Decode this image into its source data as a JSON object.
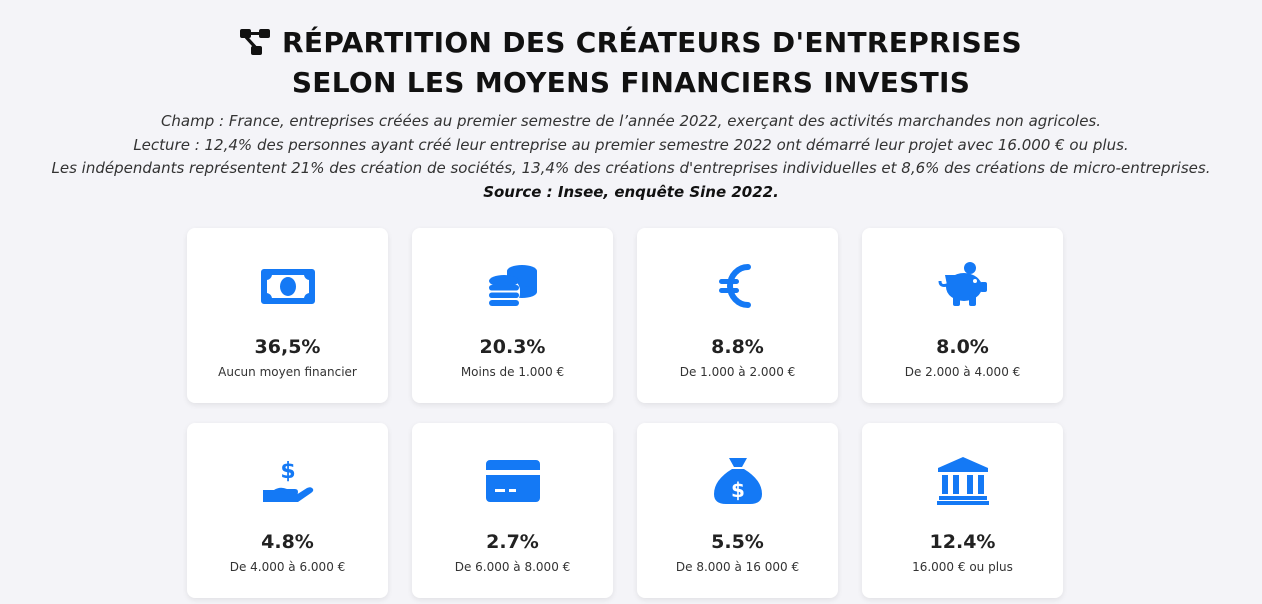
{
  "title": {
    "line1": "RÉPARTITION DES CRÉATEURS D'ENTREPRISES",
    "line2": "SELON LES MOYENS FINANCIERS INVESTIS",
    "icon": "network-icon"
  },
  "description": {
    "champ": "Champ : France, entreprises créées au premier semestre de l’année 2022, exerçant des activités marchandes non agricoles.",
    "lecture": "Lecture : 12,4% des personnes ayant créé leur entreprise au premier semestre 2022 ont démarré leur projet avec 16.000 € ou plus.",
    "independants": "Les indépendants représentent 21% des création de sociétés, 13,4% des créations d'entreprises individuelles et 8,6% des créations de micro-entreprises.",
    "source": "Source : Insee, enquête Sine 2022."
  },
  "accent_color": "#1479f5",
  "cards": [
    {
      "value": "36,5%",
      "label": "Aucun moyen financier",
      "icon": "money-bill-icon"
    },
    {
      "value": "20.3%",
      "label": "Moins de 1.000 €",
      "icon": "coins-icon"
    },
    {
      "value": "8.8%",
      "label": "De 1.000 à 2.000 €",
      "icon": "euro-icon"
    },
    {
      "value": "8.0%",
      "label": "De 2.000 à 4.000 €",
      "icon": "piggy-bank-icon"
    },
    {
      "value": "4.8%",
      "label": "De 4.000 à 6.000 €",
      "icon": "hand-dollar-icon"
    },
    {
      "value": "2.7%",
      "label": "De 6.000 à 8.000 €",
      "icon": "credit-card-icon"
    },
    {
      "value": "5.5%",
      "label": "De 8.000 à 16 000 €",
      "icon": "money-bag-icon"
    },
    {
      "value": "12.4%",
      "label": "16.000 € ou plus",
      "icon": "bank-icon"
    }
  ]
}
